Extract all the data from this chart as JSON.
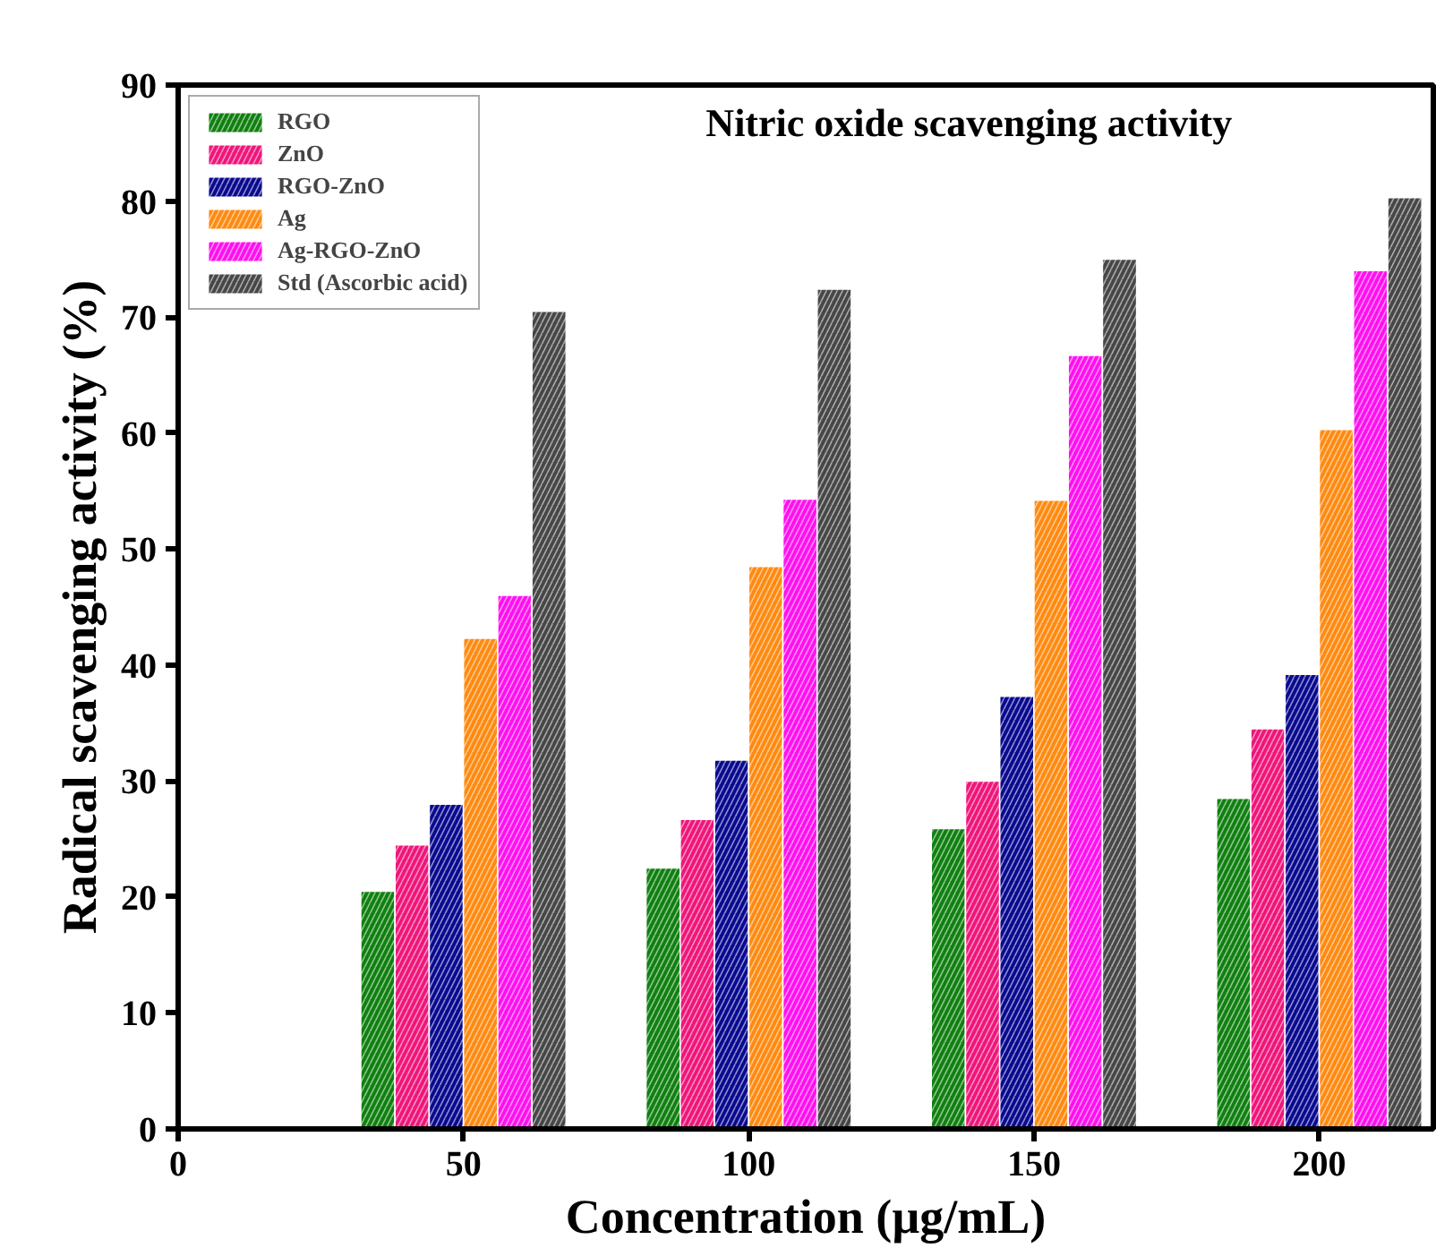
{
  "chart_data": {
    "type": "bar",
    "title": "Nitric oxide scavenging activity",
    "xlabel": "Concentration (µg/mL)",
    "ylabel": "Radical scavenging activity (%)",
    "x": [
      50,
      100,
      150,
      200
    ],
    "series": [
      {
        "name": "RGO",
        "color": "#108010",
        "values": [
          20.5,
          22.5,
          25.9,
          28.5
        ]
      },
      {
        "name": "ZnO",
        "color": "#f0157a",
        "values": [
          24.5,
          26.7,
          30.0,
          34.5
        ]
      },
      {
        "name": "RGO-ZnO",
        "color": "#0a0a90",
        "values": [
          28.0,
          31.8,
          37.3,
          39.2
        ]
      },
      {
        "name": "Ag",
        "color": "#ff8a10",
        "values": [
          42.3,
          48.5,
          54.2,
          60.3
        ]
      },
      {
        "name": "Ag-RGO-ZnO",
        "color": "#ff10f0",
        "values": [
          46.0,
          54.3,
          66.7,
          74.0
        ]
      },
      {
        "name": "Std (Ascorbic acid)",
        "color": "#474747",
        "values": [
          70.5,
          72.4,
          75.0,
          80.3
        ]
      }
    ],
    "xlim": [
      0,
      220
    ],
    "xticks": [
      0,
      50,
      100,
      150,
      200
    ],
    "ylim": [
      0,
      90
    ],
    "yticks": [
      0,
      10,
      20,
      30,
      40,
      50,
      60,
      70,
      80,
      90
    ],
    "grid": false,
    "legend": "top left"
  }
}
